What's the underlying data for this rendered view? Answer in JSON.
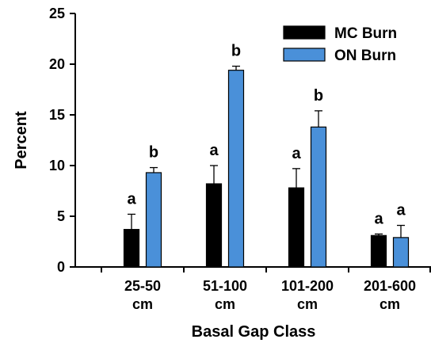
{
  "chart_data": {
    "type": "bar",
    "xlabel": "Basal Gap Class",
    "ylabel": "Percent",
    "ylim": [
      0,
      25
    ],
    "yticks": [
      "0",
      "5",
      "10",
      "15",
      "20",
      "25"
    ],
    "categories": [
      {
        "line1": "25-50",
        "line2": "cm"
      },
      {
        "line1": "51-100",
        "line2": "cm"
      },
      {
        "line1": "101-200",
        "line2": "cm"
      },
      {
        "line1": "201-600",
        "line2": "cm"
      }
    ],
    "series": [
      {
        "name": "MC Burn",
        "color": "#000000",
        "values": [
          3.7,
          8.2,
          7.8,
          3.1
        ],
        "error": [
          1.5,
          1.8,
          1.9,
          0.15
        ],
        "labels": [
          "a",
          "a",
          "a",
          "a"
        ]
      },
      {
        "name": "ON Burn",
        "color": "#4a90d9",
        "values": [
          9.3,
          19.4,
          13.8,
          2.9
        ],
        "error": [
          0.5,
          0.4,
          1.6,
          1.2
        ],
        "labels": [
          "b",
          "b",
          "b",
          "a"
        ]
      }
    ],
    "legend_position": "top-right",
    "grid": false
  }
}
